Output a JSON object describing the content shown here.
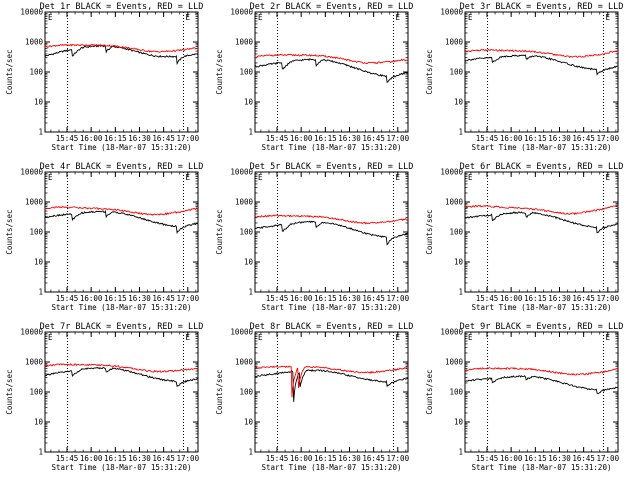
{
  "time_ticks": [
    "15:45",
    "16:00",
    "16:15",
    "16:30",
    "16:45",
    "17:00"
  ],
  "y_ticks": [
    "1",
    "10",
    "100",
    "1000",
    "10000"
  ],
  "xlabel": "Start Time (18-Mar-07 15:31:20)",
  "ylabel": "Counts/sec",
  "marker_label": "E",
  "colors": {
    "events": "#000000",
    "lld": "#ff0000",
    "axes": "#000000",
    "background": "#ffffff"
  },
  "chart_data": [
    {
      "type": "line",
      "title": "Det 1r BLACK = Events, RED = LLD",
      "yscale": "log",
      "ylim": [
        1,
        10000
      ],
      "xlim_min": [
        0,
        95
      ],
      "vlines_min": [
        14,
        86
      ],
      "series": [
        {
          "name": "Events",
          "baseline": 210,
          "bumps": [
            [
              36,
              0.08,
              2.5
            ],
            [
              9,
              0.2,
              0.4
            ],
            [
              85,
              0.18,
              0.5
            ]
          ],
          "dips": [
            [
              17,
              23,
              0.6
            ],
            [
              38,
              42,
              0.65
            ],
            [
              82,
              86,
              0.6
            ]
          ],
          "end_rise": 1.4
        },
        {
          "name": "LLD",
          "baseline": 240,
          "bumps": [
            [
              37,
              0.06,
              2.1
            ],
            [
              4,
              0.12,
              1.5
            ],
            [
              91,
              0.12,
              1.2
            ]
          ],
          "dips": [],
          "end_rise": 1.2
        }
      ]
    },
    {
      "type": "line",
      "title": "Det 2r BLACK = Events, RED = LLD",
      "yscale": "log",
      "ylim": [
        1,
        10000
      ],
      "xlim_min": [
        0,
        95
      ],
      "vlines_min": [
        14,
        86
      ],
      "series": [
        {
          "name": "Events",
          "baseline": 65,
          "bumps": [
            [
              37,
              0.08,
              3.0
            ],
            [
              4,
              0.15,
              1.0
            ]
          ],
          "dips": [
            [
              17,
              23,
              0.6
            ],
            [
              38,
              42,
              0.65
            ],
            [
              82,
              86,
              0.6
            ]
          ],
          "end_rise": 1.5
        },
        {
          "name": "LLD",
          "baseline": 90,
          "bumps": [
            [
              37,
              0.06,
              2.8
            ],
            [
              4,
              0.12,
              2.0
            ],
            [
              91,
              0.12,
              1.4
            ]
          ],
          "dips": [],
          "end_rise": 1.2
        }
      ]
    },
    {
      "type": "line",
      "title": "Det 3r BLACK = Events, RED = LLD",
      "yscale": "log",
      "ylim": [
        1,
        10000
      ],
      "xlim_min": [
        0,
        95
      ],
      "vlines_min": [
        14,
        86
      ],
      "series": [
        {
          "name": "Events",
          "baseline": 110,
          "bumps": [
            [
              37,
              0.08,
              2.2
            ],
            [
              4,
              0.15,
              1.0
            ]
          ],
          "dips": [
            [
              17,
              23,
              0.7
            ],
            [
              38,
              42,
              0.75
            ],
            [
              82,
              86,
              0.7
            ]
          ],
          "end_rise": 1.4
        },
        {
          "name": "LLD",
          "baseline": 150,
          "bumps": [
            [
              37,
              0.06,
              2.2
            ],
            [
              4,
              0.12,
              1.8
            ],
            [
              91,
              0.12,
              1.6
            ]
          ],
          "dips": [],
          "end_rise": 1.3
        }
      ]
    },
    {
      "type": "line",
      "title": "Det 4r BLACK = Events, RED = LLD",
      "yscale": "log",
      "ylim": [
        1,
        10000
      ],
      "xlim_min": [
        0,
        95
      ],
      "vlines_min": [
        14,
        86
      ],
      "series": [
        {
          "name": "Events",
          "baseline": 140,
          "bumps": [
            [
              37,
              0.08,
              2.4
            ],
            [
              4,
              0.15,
              1.0
            ]
          ],
          "dips": [
            [
              17,
              23,
              0.65
            ],
            [
              38,
              42,
              0.7
            ],
            [
              82,
              86,
              0.65
            ]
          ],
          "end_rise": 1.4
        },
        {
          "name": "LLD",
          "baseline": 170,
          "bumps": [
            [
              37,
              0.06,
              2.3
            ],
            [
              4,
              0.12,
              2.2
            ],
            [
              91,
              0.12,
              1.8
            ]
          ],
          "dips": [],
          "end_rise": 1.3
        }
      ]
    },
    {
      "type": "line",
      "title": "Det 5r BLACK = Events, RED = LLD",
      "yscale": "log",
      "ylim": [
        1,
        10000
      ],
      "xlim_min": [
        0,
        95
      ],
      "vlines_min": [
        14,
        86
      ],
      "series": [
        {
          "name": "Events",
          "baseline": 60,
          "bumps": [
            [
              37,
              0.08,
              2.6
            ],
            [
              4,
              0.15,
              0.9
            ]
          ],
          "dips": [
            [
              17,
              23,
              0.6
            ],
            [
              38,
              42,
              0.65
            ],
            [
              82,
              86,
              0.6
            ]
          ],
          "end_rise": 1.5
        },
        {
          "name": "LLD",
          "baseline": 90,
          "bumps": [
            [
              37,
              0.06,
              2.5
            ],
            [
              4,
              0.12,
              2.0
            ],
            [
              91,
              0.12,
              1.5
            ]
          ],
          "dips": [],
          "end_rise": 1.2
        }
      ]
    },
    {
      "type": "line",
      "title": "Det 6r BLACK = Events, RED = LLD",
      "yscale": "log",
      "ylim": [
        1,
        10000
      ],
      "xlim_min": [
        0,
        95
      ],
      "vlines_min": [
        14,
        86
      ],
      "series": [
        {
          "name": "Events",
          "baseline": 130,
          "bumps": [
            [
              37,
              0.08,
              2.4
            ],
            [
              4,
              0.15,
              1.0
            ]
          ],
          "dips": [
            [
              17,
              23,
              0.65
            ],
            [
              38,
              42,
              0.7
            ],
            [
              82,
              86,
              0.65
            ]
          ],
          "end_rise": 1.4
        },
        {
          "name": "LLD",
          "baseline": 170,
          "bumps": [
            [
              37,
              0.06,
              2.4
            ],
            [
              4,
              0.12,
              2.5
            ],
            [
              91,
              0.12,
              2.4
            ]
          ],
          "dips": [],
          "end_rise": 1.3
        }
      ]
    },
    {
      "type": "line",
      "title": "Det 7r BLACK = Events, RED = LLD",
      "yscale": "log",
      "ylim": [
        1,
        10000
      ],
      "xlim_min": [
        0,
        95
      ],
      "vlines_min": [
        14,
        86
      ],
      "series": [
        {
          "name": "Events",
          "baseline": 210,
          "bumps": [
            [
              36,
              0.08,
              2.0
            ],
            [
              4,
              0.15,
              0.5
            ]
          ],
          "dips": [
            [
              17,
              23,
              0.7
            ],
            [
              38,
              42,
              0.75
            ],
            [
              82,
              86,
              0.7
            ]
          ],
          "end_rise": 1.3
        },
        {
          "name": "LLD",
          "baseline": 250,
          "bumps": [
            [
              37,
              0.06,
              2.0
            ],
            [
              4,
              0.12,
              1.6
            ],
            [
              91,
              0.12,
              1.1
            ]
          ],
          "dips": [],
          "end_rise": 1.1
        }
      ]
    },
    {
      "type": "line",
      "title": "Det 8r BLACK = Events, RED = LLD",
      "yscale": "log",
      "ylim": [
        1,
        10000
      ],
      "xlim_min": [
        0,
        95
      ],
      "vlines_min": [
        14,
        86
      ],
      "series": [
        {
          "name": "Events",
          "baseline": 210,
          "bumps": [
            [
              36,
              0.08,
              1.5
            ],
            [
              4,
              0.15,
              0.4
            ]
          ],
          "dips": [
            [
              24,
              28,
              0.1
            ],
            [
              28,
              32,
              0.3
            ],
            [
              82,
              86,
              0.7
            ]
          ],
          "end_rise": 1.4
        },
        {
          "name": "LLD",
          "baseline": 230,
          "bumps": [
            [
              37,
              0.06,
              1.8
            ],
            [
              4,
              0.12,
              1.4
            ],
            [
              91,
              0.12,
              1.3
            ]
          ],
          "dips": [
            [
              23,
              27,
              0.1
            ],
            [
              27,
              31,
              0.2
            ]
          ],
          "end_rise": 1.2
        }
      ]
    },
    {
      "type": "line",
      "title": "Det 9r BLACK = Events, RED = LLD",
      "yscale": "log",
      "ylim": [
        1,
        10000
      ],
      "xlim_min": [
        0,
        95
      ],
      "vlines_min": [
        14,
        86
      ],
      "series": [
        {
          "name": "Events",
          "baseline": 110,
          "bumps": [
            [
              37,
              0.08,
              2.0
            ],
            [
              4,
              0.15,
              0.9
            ]
          ],
          "dips": [
            [
              17,
              23,
              0.75
            ],
            [
              38,
              42,
              0.8
            ],
            [
              82,
              86,
              0.75
            ]
          ],
          "end_rise": 1.3
        },
        {
          "name": "LLD",
          "baseline": 190,
          "bumps": [
            [
              37,
              0.06,
              2.0
            ],
            [
              4,
              0.12,
              1.5
            ],
            [
              91,
              0.12,
              1.4
            ]
          ],
          "dips": [],
          "end_rise": 1.3
        }
      ]
    }
  ]
}
